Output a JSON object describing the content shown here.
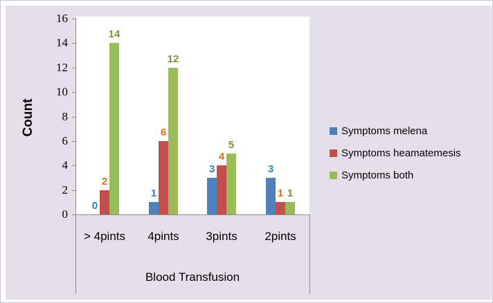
{
  "chart_data": {
    "type": "bar",
    "title": "",
    "categories": [
      "> 4pints",
      "4pints",
      "3pints",
      "2pints"
    ],
    "series": [
      {
        "name": "Symptoms melena",
        "color": "#4F81BD",
        "label_color": "#2E81B0",
        "values": [
          0,
          1,
          3,
          3
        ]
      },
      {
        "name": "Symptoms heamatemesis",
        "color": "#C0504D",
        "label_color": "#E36C09",
        "values": [
          2,
          6,
          4,
          1
        ]
      },
      {
        "name": "Symptoms both",
        "color": "#9BBB59",
        "label_color": "#76923C",
        "values": [
          14,
          12,
          5,
          1
        ]
      }
    ],
    "xlabel": "Blood Transfusion",
    "ylabel": "Count",
    "ylim": [
      0,
      16
    ],
    "yticks": [
      0,
      2,
      4,
      6,
      8,
      10,
      12,
      14,
      16
    ],
    "grid": false,
    "data_labels": true,
    "legend_position": "right"
  },
  "colors": {
    "chart_background": "#E5DFEC",
    "plot_background": "#FFFFFF",
    "axis_line": "#8C8C8C",
    "text": "#000000"
  }
}
